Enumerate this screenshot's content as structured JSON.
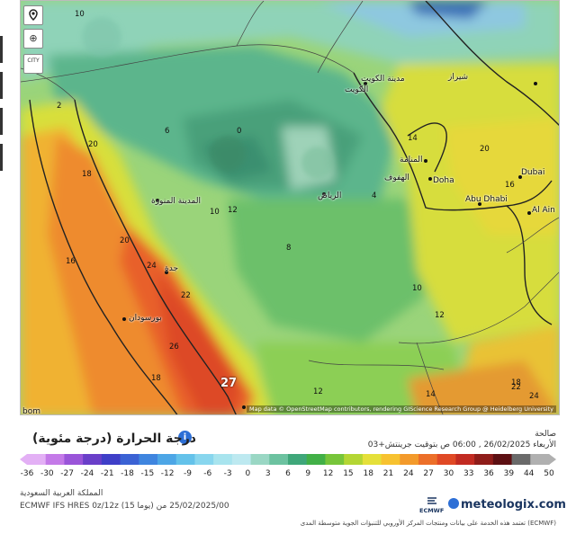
{
  "map": {
    "attribution": "Map data © OpenStreetMap contributors, rendering GIScience Research Group @ Heidelberg University",
    "controls": {
      "zoom_symbol": "⊕",
      "city_toggle": "CITY"
    },
    "place_labels": [
      {
        "text": "الكويت"
      },
      {
        "text": "مدينة الكويت"
      },
      {
        "text": "المنامة"
      },
      {
        "text": "الهفوف"
      },
      {
        "text": "Doha"
      },
      {
        "text": "Dubai"
      },
      {
        "text": "Abu Dhabi"
      },
      {
        "text": "Al Ain"
      },
      {
        "text": "الرياض"
      },
      {
        "text": "المدينة المنورة"
      },
      {
        "text": "جدة"
      },
      {
        "text": "بورسودان"
      },
      {
        "text": "شيراز"
      },
      {
        "text": "bom"
      }
    ],
    "temperature_labels": [
      "10",
      "2",
      "0",
      "4",
      "6",
      "10",
      "12",
      "14",
      "16",
      "18",
      "20",
      "22",
      "24",
      "26",
      "27",
      "8",
      "12",
      "16",
      "20",
      "22",
      "24",
      "14",
      "10",
      "12",
      "18",
      "20",
      "18"
    ],
    "highlight_value": "27"
  },
  "header": {
    "title": "درجة الحرارة (درجة مئوية)",
    "valid_label": "صالحة",
    "valid_time": "الأربعاء 26/02/2025 , 06:00 ص بتوقيت جرينتش+03"
  },
  "legend": {
    "ticks": [
      "-36",
      "-30",
      "-27",
      "-24",
      "-21",
      "-18",
      "-15",
      "-12",
      "-9",
      "-6",
      "-3",
      "0",
      "3",
      "6",
      "9",
      "12",
      "15",
      "18",
      "21",
      "24",
      "27",
      "30",
      "33",
      "36",
      "39",
      "44",
      "50"
    ],
    "colors": [
      "#e3b0f5",
      "#c47ae8",
      "#9a55d9",
      "#6a3fc9",
      "#3f3fc8",
      "#3b62d4",
      "#3f85df",
      "#4da6e6",
      "#64c2ea",
      "#88d6ee",
      "#a8e4ee",
      "#bde9f0",
      "#9ad7c4",
      "#6cc2a0",
      "#3fa77a",
      "#42b047",
      "#77c53a",
      "#b4d634",
      "#e5e03a",
      "#f7c230",
      "#f39a2b",
      "#ec6f29",
      "#e04925",
      "#c22b22",
      "#8f1d1a",
      "#5d1013",
      "#6a6a6a",
      "#b0b0b0"
    ]
  },
  "footer": {
    "agency": "المملكة العربية السعودية",
    "model": "ECMWF IFS HRES 0z/12z (15 يوما) 25/02/2025/00 من",
    "brand": "meteologix.com",
    "ecmwf_label": "ECMWF",
    "disclaimer": "(ECMWF) تعتمد هذه الخدمة على بيانات ومنتجات المركز الأوروبي للتنبؤات الجوية متوسطة المدى"
  }
}
